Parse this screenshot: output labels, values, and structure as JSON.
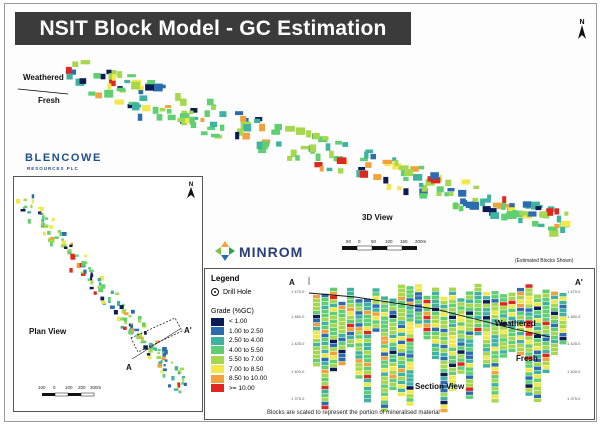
{
  "title": "NSIT Block Model - GC Estimation",
  "north": "N",
  "labels": {
    "weathered_3d": "Weathered",
    "fresh_3d": "Fresh",
    "view_3d": "3D View",
    "plan_view": "Plan View",
    "a_left": "A",
    "a_prime": "A'",
    "section_a": "A",
    "section_a_prime": "A'",
    "weathered_section": "Weathered",
    "fresh_section": "Fresh",
    "section_view": "Section View"
  },
  "blencowe": {
    "name": "BLENCOWE",
    "sub": "RESOURCES PLC"
  },
  "minrom": "MINROM",
  "estimated_note": "(Estimated Blocks Shown)",
  "scale_3d": [
    "50",
    "0",
    "50",
    "100",
    "150",
    "200m"
  ],
  "scale_plan": [
    "100",
    "0",
    "100",
    "200",
    "300m"
  ],
  "legend": {
    "title": "Legend",
    "drill_hole": "Drill Hole",
    "grade_title": "Grade (%GC)",
    "grades": [
      {
        "label": "< 1.00",
        "color": "#0c1c55"
      },
      {
        "label": "1.00 to 2.50",
        "color": "#2b6cb0"
      },
      {
        "label": "2.50 to 4.00",
        "color": "#3fb3a0"
      },
      {
        "label": "4.00 to 5.50",
        "color": "#5fcf72"
      },
      {
        "label": "5.50 to 7.00",
        "color": "#a5d84f"
      },
      {
        "label": "7.00 to 8.50",
        "color": "#f3e84a"
      },
      {
        "label": "8.50 to 10.00",
        "color": "#f3a13a"
      },
      {
        "label": ">= 10.00",
        "color": "#e0271f"
      }
    ]
  },
  "section_axis": [
    "1 470.0",
    "1 460.0",
    "1 425.0",
    "1 400.0",
    "1 375.0"
  ],
  "caption": "Blocks are scaled to represent the portion of mineralised material"
}
